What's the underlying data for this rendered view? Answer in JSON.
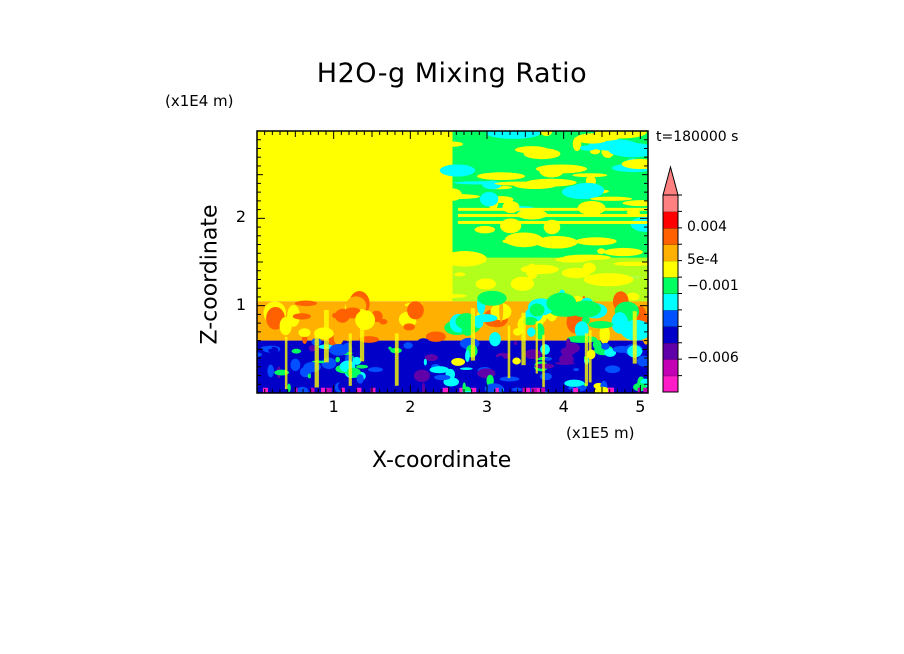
{
  "chart_data": {
    "type": "heatmap",
    "title": "H2O-g Mixing Ratio",
    "xlabel": "X-coordinate",
    "ylabel": "Z-coordinate",
    "x_scale_label": "(x1E5 m)",
    "y_scale_label": "(x1E4 m)",
    "time_label": "t=180000 s",
    "xlim": [
      0,
      5.1
    ],
    "ylim": [
      0,
      3.0
    ],
    "x_ticks": [
      {
        "value": 1,
        "label": "1"
      },
      {
        "value": 2,
        "label": "2"
      },
      {
        "value": 3,
        "label": "3"
      },
      {
        "value": 4,
        "label": "4"
      },
      {
        "value": 5,
        "label": "5"
      }
    ],
    "y_ticks": [
      {
        "value": 1,
        "label": "1"
      },
      {
        "value": 2,
        "label": "2"
      }
    ],
    "colorbar": {
      "levels": [
        {
          "color": "#ff1cc8"
        },
        {
          "color": "#c400b4"
        },
        {
          "color": "#6000a8"
        },
        {
          "color": "#0000c8"
        },
        {
          "color": "#0050ff"
        },
        {
          "color": "#00ffff"
        },
        {
          "color": "#00ff60"
        },
        {
          "color": "#ffff00"
        },
        {
          "color": "#ffb000"
        },
        {
          "color": "#ff6000"
        },
        {
          "color": "#ff0000"
        },
        {
          "color": "#ff8080"
        }
      ],
      "labels": [
        {
          "text": "0.004",
          "level_index": 10
        },
        {
          "text": "5e-4",
          "level_index": 8
        },
        {
          "text": "−0.001",
          "level_index": 6.4
        },
        {
          "text": "−0.006",
          "level_index": 2
        }
      ]
    },
    "regions": [
      {
        "name": "upper-left",
        "x": [
          0,
          2.55
        ],
        "z": [
          1.05,
          3.0
        ],
        "color": "#ffff00"
      },
      {
        "name": "upper-right",
        "x": [
          2.55,
          5.1
        ],
        "z": [
          1.05,
          3.0
        ],
        "color": "#00ff60"
      },
      {
        "name": "mid-band",
        "x": [
          0,
          5.1
        ],
        "z": [
          0.6,
          1.05
        ],
        "color": "#ffb000"
      },
      {
        "name": "lower-band",
        "x": [
          0,
          5.1
        ],
        "z": [
          0,
          0.6
        ],
        "color": "#0000c8"
      }
    ]
  }
}
